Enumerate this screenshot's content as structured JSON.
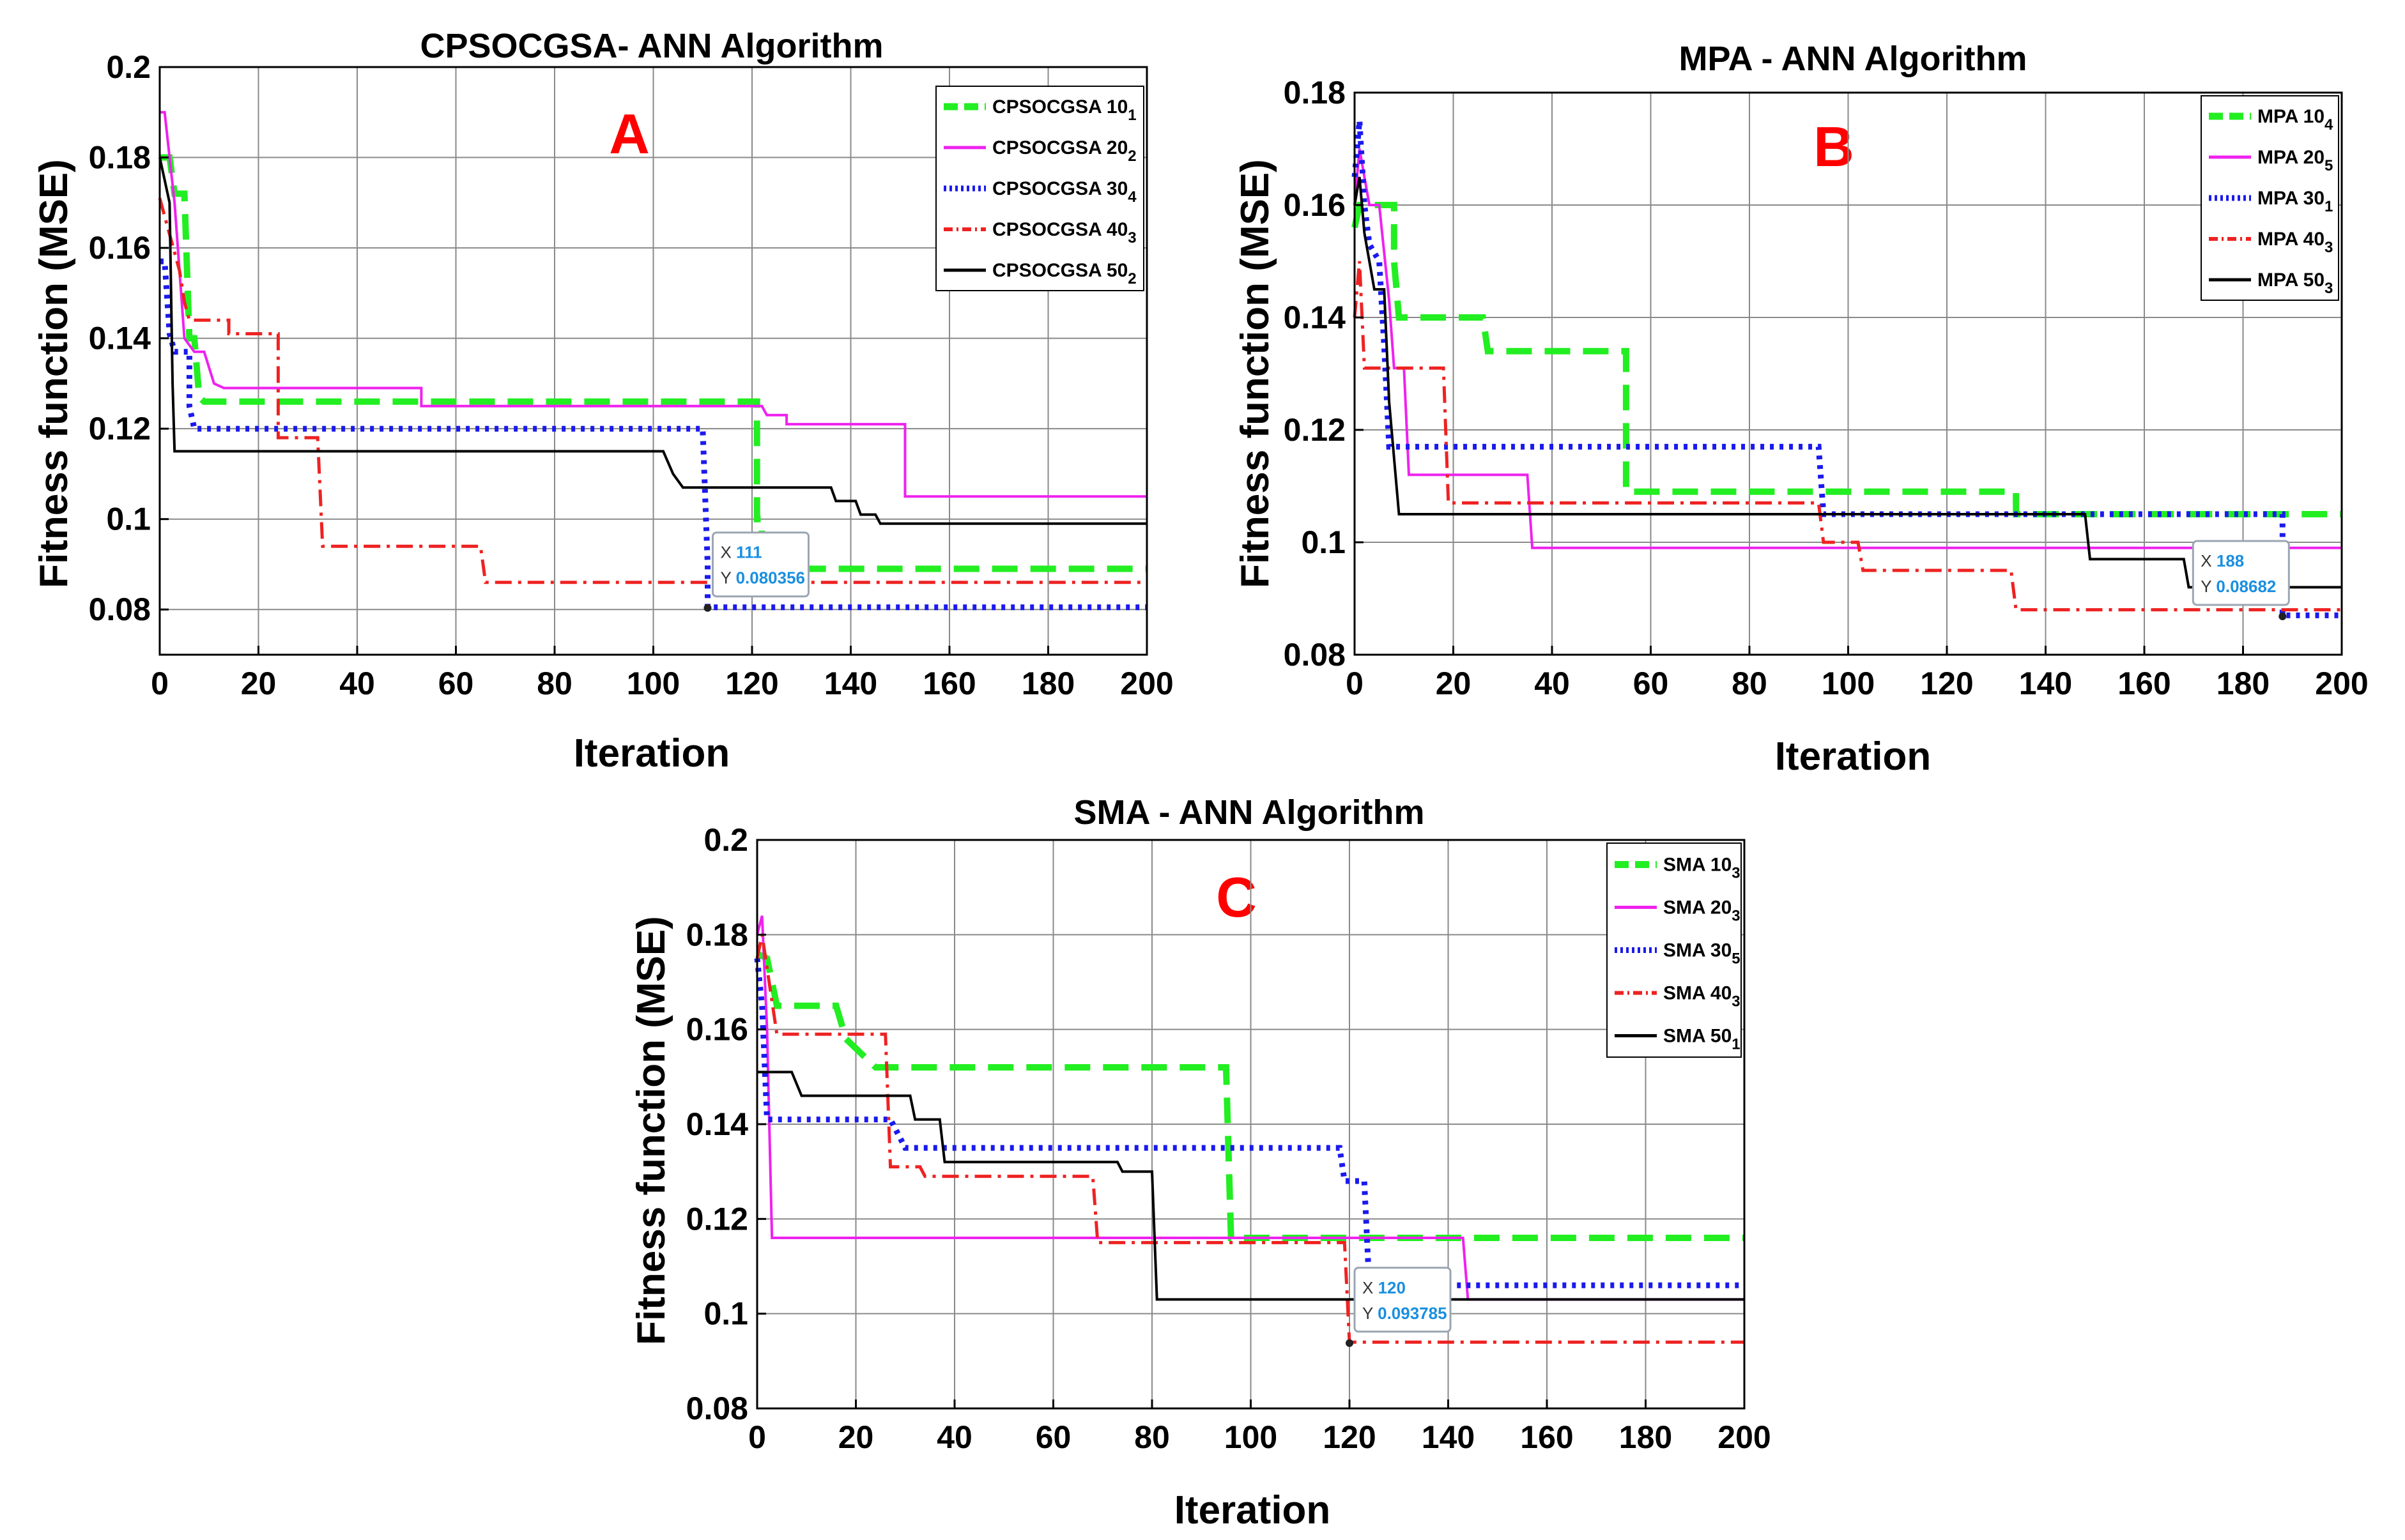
{
  "chart_data": [
    {
      "id": "A",
      "type": "line",
      "title": "CPSOCGSA- ANN Algorithm",
      "panel_label": "A",
      "xlabel": "Iteration",
      "ylabel": "Fitness function (MSE)",
      "xlim": [
        0,
        200
      ],
      "ylim": [
        0.07,
        0.2
      ],
      "xticks": [
        0,
        20,
        40,
        60,
        80,
        100,
        120,
        140,
        160,
        180,
        200
      ],
      "yticks": [
        0.08,
        0.1,
        0.12,
        0.14,
        0.16,
        0.18,
        0.2
      ],
      "ytick_labels": [
        "0.08",
        "0.1",
        "0.12",
        "0.14",
        "0.16",
        "0.18",
        "0.2"
      ],
      "legend": {
        "position": "top-right"
      },
      "datatip": {
        "x_prefix": "X",
        "x": "111",
        "y_prefix": "Y",
        "y": "0.080356",
        "point": [
          111,
          0.080356
        ]
      },
      "series": [
        {
          "name": "CPSOCGSA 10",
          "sub": "1",
          "color": "#22ee22",
          "style": "dash",
          "points": [
            [
              0,
              0.18
            ],
            [
              2,
              0.18
            ],
            [
              3,
              0.172
            ],
            [
              5,
              0.172
            ],
            [
              6,
              0.14
            ],
            [
              7,
              0.14
            ],
            [
              8,
              0.127
            ],
            [
              9,
              0.126
            ],
            [
              121,
              0.126
            ],
            [
              121,
              0.1
            ],
            [
              122,
              0.1
            ],
            [
              122,
              0.089
            ],
            [
              200,
              0.089
            ]
          ]
        },
        {
          "name": "CPSOCGSA 20",
          "sub": "2",
          "color": "#ee22ee",
          "style": "solid",
          "points": [
            [
              0,
              0.19
            ],
            [
              1,
              0.19
            ],
            [
              2,
              0.18
            ],
            [
              3,
              0.17
            ],
            [
              4,
              0.155
            ],
            [
              5,
              0.14
            ],
            [
              7,
              0.137
            ],
            [
              9,
              0.137
            ],
            [
              11,
              0.13
            ],
            [
              13,
              0.129
            ],
            [
              53,
              0.129
            ],
            [
              53,
              0.125
            ],
            [
              122,
              0.125
            ],
            [
              123,
              0.123
            ],
            [
              127,
              0.123
            ],
            [
              127,
              0.121
            ],
            [
              151,
              0.121
            ],
            [
              151,
              0.105
            ],
            [
              200,
              0.105
            ]
          ]
        },
        {
          "name": "CPSOCGSA 30",
          "sub": "4",
          "color": "#1a1aee",
          "style": "dot",
          "points": [
            [
              0,
              0.157
            ],
            [
              1,
              0.157
            ],
            [
              2,
              0.141
            ],
            [
              3,
              0.137
            ],
            [
              6,
              0.137
            ],
            [
              6,
              0.125
            ],
            [
              7,
              0.12
            ],
            [
              110,
              0.12
            ],
            [
              111,
              0.09
            ],
            [
              111,
              0.0805
            ],
            [
              200,
              0.0805
            ]
          ]
        },
        {
          "name": "CPSOCGSA 40",
          "sub": "3",
          "color": "#ee2222",
          "style": "dashdot",
          "points": [
            [
              0,
              0.171
            ],
            [
              1,
              0.167
            ],
            [
              4,
              0.155
            ],
            [
              5,
              0.148
            ],
            [
              6,
              0.144
            ],
            [
              14,
              0.144
            ],
            [
              14,
              0.141
            ],
            [
              24,
              0.141
            ],
            [
              24,
              0.118
            ],
            [
              32,
              0.118
            ],
            [
              33,
              0.094
            ],
            [
              65,
              0.094
            ],
            [
              66,
              0.086
            ],
            [
              200,
              0.086
            ]
          ]
        },
        {
          "name": "CPSOCGSA 50",
          "sub": "2",
          "color": "#000000",
          "style": "solid",
          "points": [
            [
              0,
              0.18
            ],
            [
              1,
              0.175
            ],
            [
              2,
              0.17
            ],
            [
              2.6,
              0.13
            ],
            [
              3,
              0.115
            ],
            [
              102,
              0.115
            ],
            [
              104,
              0.11
            ],
            [
              106,
              0.107
            ],
            [
              108,
              0.107
            ],
            [
              110,
              0.107
            ],
            [
              136,
              0.107
            ],
            [
              137,
              0.104
            ],
            [
              141,
              0.104
            ],
            [
              142,
              0.101
            ],
            [
              145,
              0.101
            ],
            [
              146,
              0.099
            ],
            [
              200,
              0.099
            ]
          ]
        }
      ]
    },
    {
      "id": "B",
      "type": "line",
      "title": "MPA - ANN Algorithm",
      "panel_label": "B",
      "xlabel": "Iteration",
      "ylabel": "Fitness function (MSE)",
      "xlim": [
        0,
        200
      ],
      "ylim": [
        0.08,
        0.18
      ],
      "xticks": [
        0,
        20,
        40,
        60,
        80,
        100,
        120,
        140,
        160,
        180,
        200
      ],
      "yticks": [
        0.08,
        0.1,
        0.12,
        0.14,
        0.16,
        0.18
      ],
      "ytick_labels": [
        "0.08",
        "0.1",
        "0.12",
        "0.14",
        "0.16",
        "0.18"
      ],
      "legend": {
        "position": "top-right"
      },
      "datatip": {
        "x_prefix": "X",
        "x": "188",
        "y_prefix": "Y",
        "y": "0.08682",
        "point": [
          188,
          0.08682
        ]
      },
      "series": [
        {
          "name": "MPA 10",
          "sub": "4",
          "color": "#22ee22",
          "style": "dash",
          "points": [
            [
              0,
              0.156
            ],
            [
              1,
              0.16
            ],
            [
              8,
              0.16
            ],
            [
              8,
              0.15
            ],
            [
              9,
              0.14
            ],
            [
              26,
              0.14
            ],
            [
              27,
              0.134
            ],
            [
              55,
              0.134
            ],
            [
              55,
              0.109
            ],
            [
              134,
              0.109
            ],
            [
              134,
              0.105
            ],
            [
              200,
              0.105
            ]
          ]
        },
        {
          "name": "MPA 20",
          "sub": "5",
          "color": "#ee22ee",
          "style": "solid",
          "points": [
            [
              0,
              0.16
            ],
            [
              1,
              0.17
            ],
            [
              2,
              0.165
            ],
            [
              3,
              0.16
            ],
            [
              5,
              0.16
            ],
            [
              7,
              0.143
            ],
            [
              8,
              0.131
            ],
            [
              10,
              0.131
            ],
            [
              11,
              0.112
            ],
            [
              35,
              0.112
            ],
            [
              36,
              0.099
            ],
            [
              200,
              0.099
            ]
          ]
        },
        {
          "name": "MPA 30",
          "sub": "1",
          "color": "#1a1aee",
          "style": "dot",
          "points": [
            [
              0,
              0.165
            ],
            [
              1,
              0.175
            ],
            [
              2,
              0.16
            ],
            [
              3,
              0.153
            ],
            [
              5,
              0.15
            ],
            [
              6,
              0.135
            ],
            [
              7,
              0.117
            ],
            [
              94,
              0.117
            ],
            [
              95,
              0.105
            ],
            [
              188,
              0.105
            ],
            [
              188,
              0.087
            ],
            [
              200,
              0.087
            ]
          ]
        },
        {
          "name": "MPA 40",
          "sub": "3",
          "color": "#ee2222",
          "style": "dashdot",
          "points": [
            [
              0,
              0.14
            ],
            [
              1,
              0.15
            ],
            [
              2,
              0.131
            ],
            [
              12,
              0.131
            ],
            [
              13,
              0.131
            ],
            [
              18,
              0.131
            ],
            [
              19,
              0.107
            ],
            [
              94,
              0.107
            ],
            [
              95,
              0.1
            ],
            [
              102,
              0.1
            ],
            [
              103,
              0.095
            ],
            [
              133,
              0.095
            ],
            [
              134,
              0.088
            ],
            [
              200,
              0.088
            ]
          ]
        },
        {
          "name": "MPA 50",
          "sub": "3",
          "color": "#000000",
          "style": "solid",
          "points": [
            [
              0,
              0.16
            ],
            [
              1,
              0.165
            ],
            [
              2,
              0.155
            ],
            [
              4,
              0.145
            ],
            [
              6,
              0.145
            ],
            [
              7,
              0.125
            ],
            [
              9,
              0.105
            ],
            [
              148,
              0.105
            ],
            [
              149,
              0.097
            ],
            [
              168,
              0.097
            ],
            [
              169,
              0.092
            ],
            [
              200,
              0.092
            ]
          ]
        }
      ]
    },
    {
      "id": "C",
      "type": "line",
      "title": "SMA - ANN Algorithm",
      "panel_label": "C",
      "xlabel": "Iteration",
      "ylabel": "Fitness function (MSE)",
      "xlim": [
        0,
        200
      ],
      "ylim": [
        0.08,
        0.2
      ],
      "xticks": [
        0,
        20,
        40,
        60,
        80,
        100,
        120,
        140,
        160,
        180,
        200
      ],
      "yticks": [
        0.08,
        0.1,
        0.12,
        0.14,
        0.16,
        0.18,
        0.2
      ],
      "ytick_labels": [
        "0.08",
        "0.1",
        "0.12",
        "0.14",
        "0.16",
        "0.18",
        "0.2"
      ],
      "legend": {
        "position": "top-right"
      },
      "datatip": {
        "x_prefix": "X",
        "x": "120",
        "y_prefix": "Y",
        "y": "0.093785",
        "point": [
          120,
          0.093785
        ]
      },
      "series": [
        {
          "name": "SMA 10",
          "sub": "3",
          "color": "#22ee22",
          "style": "dash",
          "points": [
            [
              0,
              0.176
            ],
            [
              2,
              0.175
            ],
            [
              4,
              0.165
            ],
            [
              16,
              0.165
            ],
            [
              18,
              0.158
            ],
            [
              24,
              0.152
            ],
            [
              95,
              0.152
            ],
            [
              96,
              0.116
            ],
            [
              200,
              0.116
            ]
          ]
        },
        {
          "name": "SMA 20",
          "sub": "3",
          "color": "#ee22ee",
          "style": "solid",
          "points": [
            [
              0,
              0.18
            ],
            [
              1,
              0.184
            ],
            [
              2,
              0.16
            ],
            [
              3,
              0.116
            ],
            [
              143,
              0.116
            ],
            [
              144,
              0.103
            ],
            [
              200,
              0.103
            ]
          ]
        },
        {
          "name": "SMA 30",
          "sub": "5",
          "color": "#1a1aee",
          "style": "dot",
          "points": [
            [
              0,
              0.175
            ],
            [
              1,
              0.165
            ],
            [
              2,
              0.141
            ],
            [
              27,
              0.141
            ],
            [
              30,
              0.135
            ],
            [
              118,
              0.135
            ],
            [
              119,
              0.128
            ],
            [
              123,
              0.128
            ],
            [
              124,
              0.106
            ],
            [
              200,
              0.106
            ]
          ]
        },
        {
          "name": "SMA 40",
          "sub": "3",
          "color": "#ee2222",
          "style": "dashdot",
          "points": [
            [
              0,
              0.175
            ],
            [
              1,
              0.18
            ],
            [
              4,
              0.159
            ],
            [
              26,
              0.159
            ],
            [
              27,
              0.131
            ],
            [
              33,
              0.131
            ],
            [
              34,
              0.129
            ],
            [
              68,
              0.129
            ],
            [
              69,
              0.115
            ],
            [
              119,
              0.115
            ],
            [
              120,
              0.094
            ],
            [
              200,
              0.094
            ]
          ]
        },
        {
          "name": "SMA 50",
          "sub": "1",
          "color": "#000000",
          "style": "solid",
          "points": [
            [
              0,
              0.151
            ],
            [
              7,
              0.151
            ],
            [
              9,
              0.146
            ],
            [
              31,
              0.146
            ],
            [
              32,
              0.141
            ],
            [
              37,
              0.141
            ],
            [
              38,
              0.132
            ],
            [
              73,
              0.132
            ],
            [
              74,
              0.13
            ],
            [
              80,
              0.13
            ],
            [
              81,
              0.103
            ],
            [
              200,
              0.103
            ]
          ]
        }
      ]
    }
  ]
}
